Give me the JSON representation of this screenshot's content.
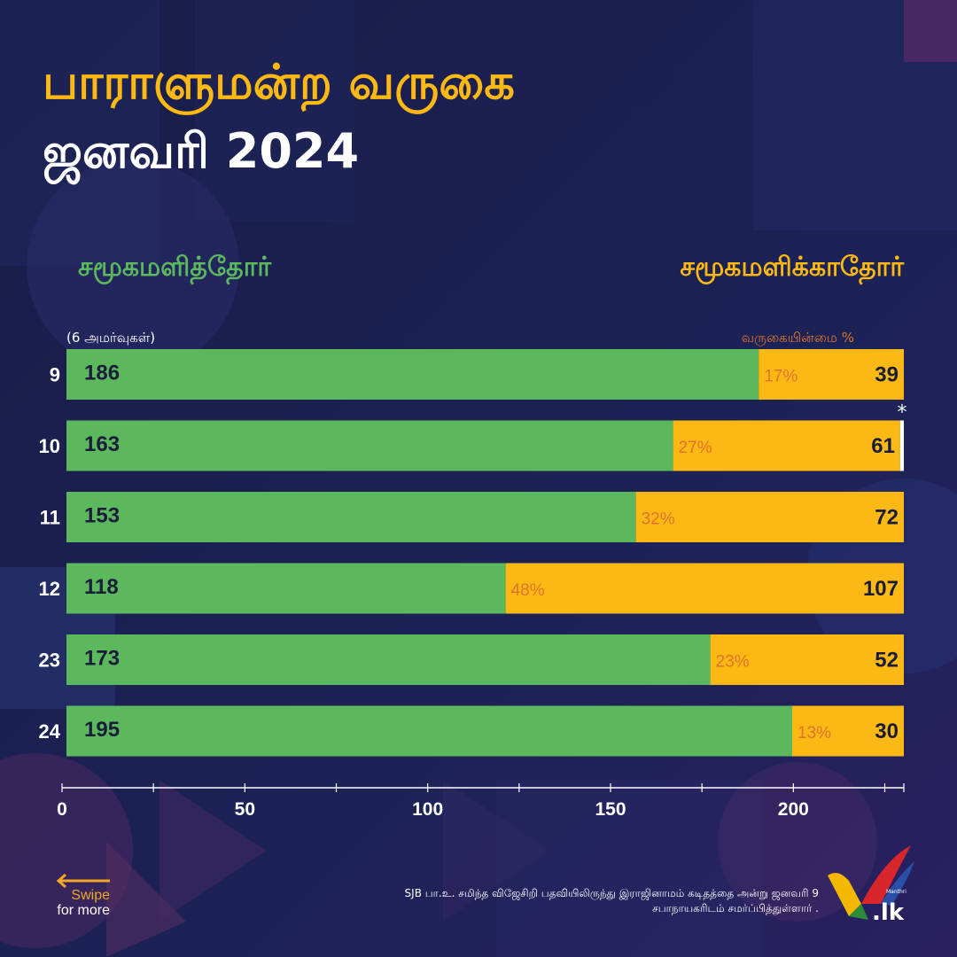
{
  "header": {
    "title_line1": "பாராளுமன்ற வருகை",
    "title_line2": "ஜனவரி 2024"
  },
  "labels": {
    "attended": "சமூகமளித்தோர்",
    "absent": "சமூகமளிக்காதோர்",
    "sessions_note": "(6 அமர்வுகள்)",
    "absent_pct": "வருகையின்மை %"
  },
  "footer": {
    "swipe": "Swipe",
    "swipe_sub": "for more",
    "note_line1": "SJB பா.உ. சமிந்த விஜேசிறி பதவியிலிருந்து இராஜினாமம் கடிதத்தை அன்று ஜனவரி 9",
    "note_line2": "சபாநாயகரிடம் சமர்ப்பித்துள்ளார்  .",
    "logo_small": "Manthri",
    "logo_main": ".lk"
  },
  "colors": {
    "background": "#1b1f4e",
    "attended": "#5cb85c",
    "absent": "#fdb913",
    "pct_text": "#e0742b"
  },
  "chart_data": {
    "type": "bar",
    "orientation": "horizontal",
    "stacked": true,
    "categories": [
      "9",
      "10",
      "11",
      "12",
      "23",
      "24"
    ],
    "series": [
      {
        "name": "சமூகமளித்தோர்",
        "values": [
          186,
          163,
          153,
          118,
          173,
          195
        ]
      },
      {
        "name": "சமூகமளிக்காதோர்",
        "values": [
          39,
          61,
          72,
          107,
          52,
          30
        ]
      }
    ],
    "absent_pct_labels": [
      "17%",
      "27%",
      "32%",
      "48%",
      "23%",
      "13%"
    ],
    "vacant_marker": {
      "category": "10",
      "symbol": "*",
      "value": 1
    },
    "x_ticks": [
      0,
      50,
      100,
      150,
      200
    ],
    "xlim": [
      0,
      229
    ]
  }
}
